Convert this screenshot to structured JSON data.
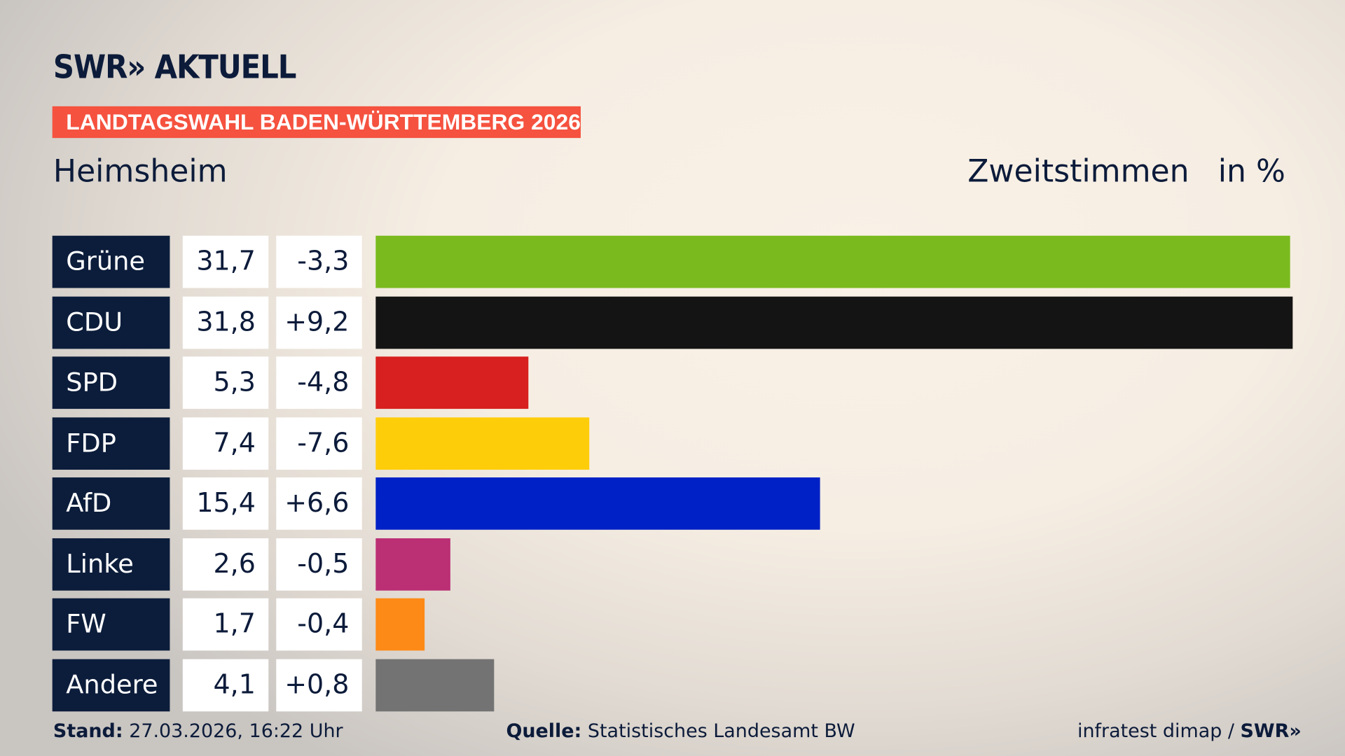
{
  "header": {
    "logo": "SWR» AKTUELL",
    "banner": "LANDTAGSWAHL BADEN-WÜRTTEMBERG 2026",
    "place": "Heimsheim",
    "vote_type": "Zweitstimmen",
    "unit": "in %"
  },
  "chart_data": {
    "type": "bar",
    "orientation": "horizontal",
    "xlim": [
      0,
      31.8
    ],
    "grid": false,
    "categories": [
      "Grüne",
      "CDU",
      "SPD",
      "FDP",
      "AfD",
      "Linke",
      "FW",
      "Andere"
    ],
    "values": [
      31.7,
      31.8,
      5.3,
      7.4,
      15.4,
      2.6,
      1.7,
      4.1
    ],
    "value_labels": [
      "31,7",
      "31,8",
      "5,3",
      "7,4",
      "15,4",
      "2,6",
      "1,7",
      "4,1"
    ],
    "diff_labels": [
      "-3,3",
      "+9,2",
      "-4,8",
      "-7,6",
      "+6,6",
      "-0,5",
      "-0,4",
      "+0,8"
    ],
    "colors": [
      "#7aba1e",
      "#141414",
      "#d7201f",
      "#fecd0a",
      "#0021c6",
      "#bb2f74",
      "#fd8a17",
      "#737373"
    ]
  },
  "footer": {
    "stand_label": "Stand:",
    "stand_value": "27.03.2026, 16:22 Uhr",
    "source_label": "Quelle:",
    "source_value": "Statistisches Landesamt BW",
    "credit": "infratest dimap / ",
    "credit_logo": "SWR»"
  }
}
